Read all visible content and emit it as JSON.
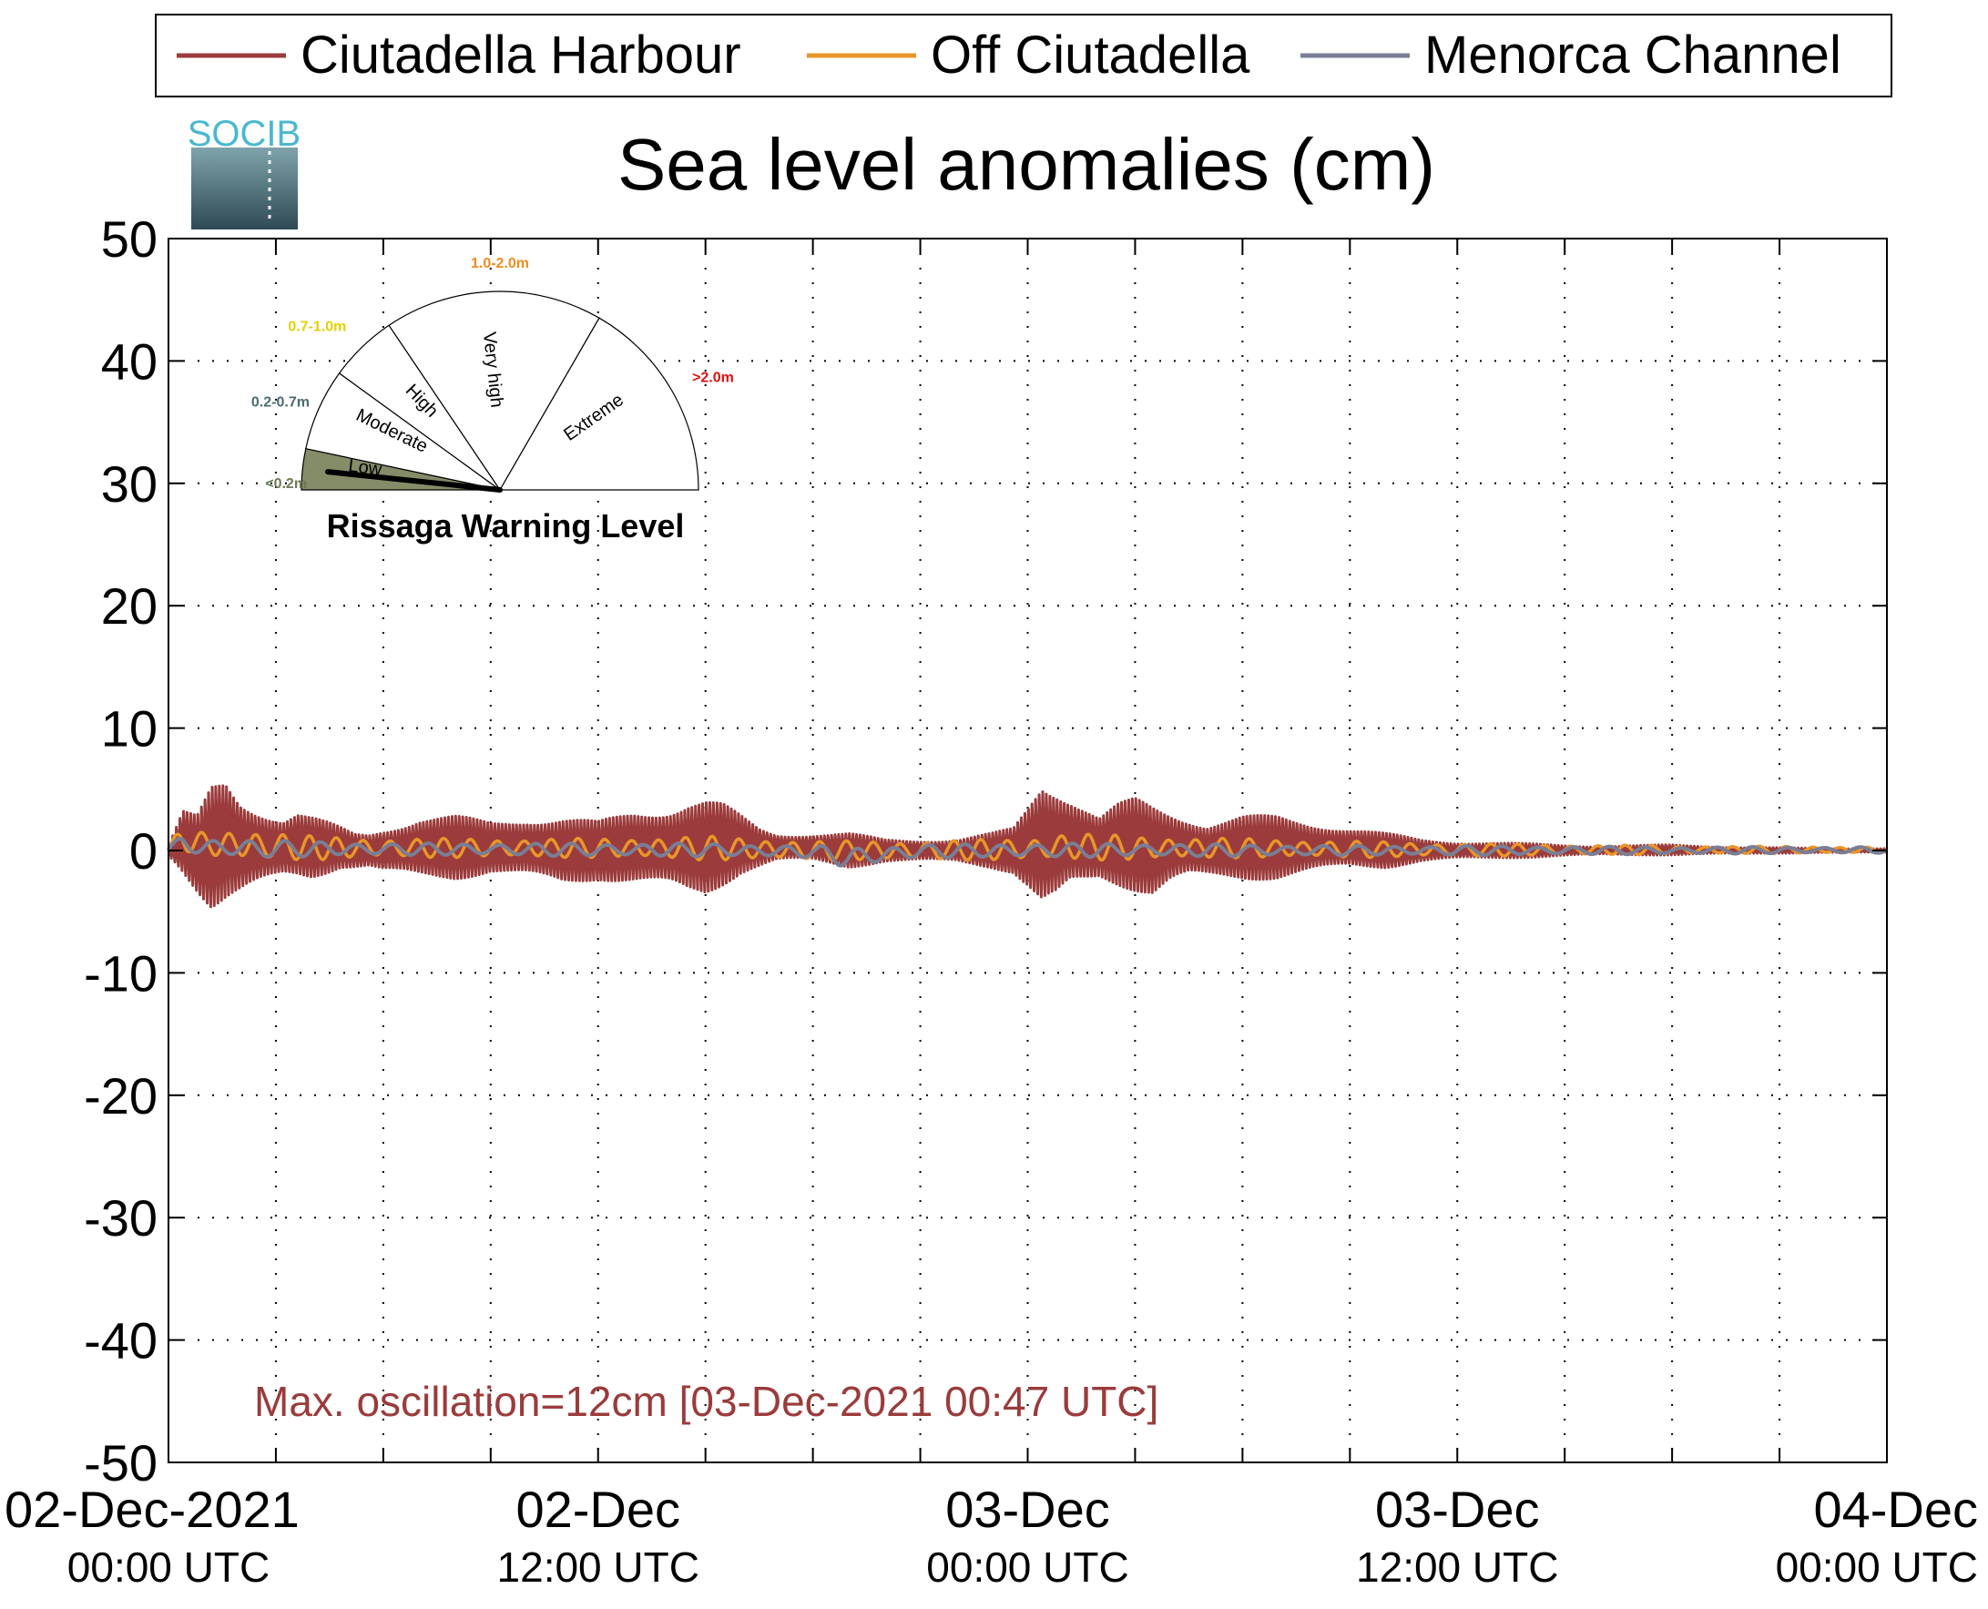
{
  "chart_data": {
    "type": "line",
    "title": "Sea level anomalies (cm)",
    "xlabel": "",
    "ylabel": "",
    "ylim": [
      -50,
      50
    ],
    "yticks": [
      50,
      40,
      30,
      20,
      10,
      0,
      -10,
      -20,
      -30,
      -40,
      -50
    ],
    "xrange": [
      "2021-12-02 00:00 UTC",
      "2021-12-04 00:00 UTC"
    ],
    "xgrid_step_hours": 3,
    "xtick_labels": [
      {
        "line1": "02-Dec-2021",
        "line2": "00:00 UTC"
      },
      {
        "line1": "02-Dec",
        "line2": "12:00 UTC"
      },
      {
        "line1": "03-Dec",
        "line2": "00:00 UTC"
      },
      {
        "line1": "03-Dec",
        "line2": "12:00 UTC"
      },
      {
        "line1": "04-Dec",
        "line2": "00:00 UTC"
      }
    ],
    "grid": true,
    "legend_position": "top",
    "annotation": "Max. oscillation=12cm [03-Dec-2021 00:47 UTC]",
    "annotation_color": "#9b3b3b",
    "series": [
      {
        "name": "Ciutadella Harbour",
        "color": "#9b3b3b",
        "envelope_hours": [
          0,
          0.4,
          0.8,
          1.2,
          1.6,
          2.0,
          2.4,
          2.8,
          3.2,
          3.6,
          4.0,
          4.4,
          4.8,
          5.2,
          5.6,
          6,
          7,
          8,
          9,
          10,
          11,
          12,
          13,
          14,
          14.5,
          15,
          15.5,
          16,
          16.5,
          17,
          18,
          19,
          20,
          21,
          22,
          23,
          23.6,
          24,
          24.4,
          24.8,
          25.2,
          25.6,
          26,
          26.5,
          27,
          27.5,
          28,
          28.5,
          29,
          30,
          31,
          32,
          33,
          34,
          35,
          36,
          38,
          40,
          42,
          44,
          46,
          48
        ],
        "envelope_max_cm": [
          0.5,
          3.5,
          3,
          5.5,
          6,
          4.5,
          4,
          3.5,
          3,
          3.5,
          3,
          2.5,
          2,
          1.5,
          1.5,
          2,
          3,
          3,
          2.5,
          3,
          3,
          2.5,
          3.5,
          4,
          4.5,
          4.5,
          4,
          3,
          2,
          1.5,
          1.5,
          1.5,
          1,
          1,
          1,
          1.5,
          2,
          4,
          6.5,
          6,
          5,
          4,
          3,
          4,
          4.5,
          4,
          3.5,
          3,
          2.5,
          3,
          3,
          2.5,
          2,
          1.5,
          1,
          0.8,
          0.6,
          0.4,
          0.5,
          0.3,
          0.2,
          0.2
        ],
        "envelope_min_cm": [
          -0.5,
          -2,
          -3.5,
          -5,
          -4.5,
          -4,
          -3.5,
          -3,
          -2.5,
          -2.5,
          -2.5,
          -2,
          -1.5,
          -1.5,
          -1.5,
          -2,
          -2.5,
          -2.5,
          -2,
          -2.5,
          -3,
          -2.5,
          -3,
          -3.5,
          -4,
          -4,
          -3,
          -2,
          -1.5,
          -1,
          -1,
          -1.5,
          -1,
          -1,
          -1,
          -1.5,
          -2,
          -3.5,
          -5.5,
          -5,
          -3.5,
          -3,
          -2.5,
          -3,
          -3.5,
          -4,
          -3,
          -2.5,
          -2.5,
          -2.5,
          -2.5,
          -2,
          -1.5,
          -1.5,
          -1,
          -0.8,
          -0.6,
          -0.4,
          -0.4,
          -0.3,
          -0.2,
          -0.2
        ]
      },
      {
        "name": "Off Ciutadella",
        "color": "#e8962a",
        "envelope_hours": [
          0,
          0.4,
          1,
          2,
          3,
          4,
          6,
          9,
          12,
          15,
          18,
          21,
          24,
          25,
          27,
          30,
          33,
          36,
          42,
          48
        ],
        "envelope_max_cm": [
          0.5,
          2,
          1.5,
          1.8,
          1.5,
          1.2,
          1,
          1,
          1,
          1.2,
          0.8,
          0.8,
          1,
          1.5,
          1.2,
          1,
          0.8,
          0.6,
          0.4,
          0.3
        ],
        "envelope_min_cm": [
          -0.3,
          0,
          -0.5,
          -0.8,
          -0.8,
          -0.8,
          -0.6,
          -0.6,
          -0.6,
          -0.8,
          -0.8,
          -0.8,
          -0.8,
          -0.8,
          -0.8,
          -0.6,
          -0.6,
          -0.5,
          -0.3,
          -0.2
        ]
      },
      {
        "name": "Menorca Channel",
        "color": "#7a7e95",
        "envelope_hours": [
          0,
          0.4,
          1,
          2,
          3,
          4,
          6,
          9,
          12,
          15,
          18,
          19,
          21,
          24,
          27,
          30,
          33,
          36,
          42,
          48
        ],
        "envelope_max_cm": [
          0.5,
          1.2,
          1,
          1,
          0.8,
          0.8,
          0.6,
          0.6,
          0.6,
          0.6,
          0.4,
          0.3,
          0.5,
          0.6,
          0.6,
          0.5,
          0.4,
          0.4,
          0.3,
          0.3
        ],
        "envelope_min_cm": [
          -0.3,
          -0.2,
          -0.4,
          -0.6,
          -0.6,
          -0.5,
          -0.4,
          -0.4,
          -0.5,
          -0.5,
          -0.6,
          -1.5,
          -0.6,
          -0.6,
          -0.5,
          -0.5,
          -0.4,
          -0.4,
          -0.3,
          -0.2
        ]
      }
    ]
  },
  "logo": {
    "text": "SOCIB"
  },
  "gauge": {
    "title": "Rissaga Warning Level",
    "level": "Low",
    "segments": [
      {
        "label": "Low",
        "range": "<0.2m",
        "range_color": "#6b7a55",
        "fill": "#848c68",
        "active": true
      },
      {
        "label": "Moderate",
        "range": "0.2-0.7m",
        "range_color": "#4a6b72",
        "fill": "#ffffff",
        "active": false
      },
      {
        "label": "High",
        "range": "0.7-1.0m",
        "range_color": "#e6d000",
        "fill": "#ffffff",
        "active": false
      },
      {
        "label": "Very high",
        "range": "1.0-2.0m",
        "range_color": "#f08c1e",
        "fill": "#ffffff",
        "active": false
      },
      {
        "label": "Extreme",
        "range": ">2.0m",
        "range_color": "#e01010",
        "fill": "#ffffff",
        "active": false
      }
    ]
  }
}
